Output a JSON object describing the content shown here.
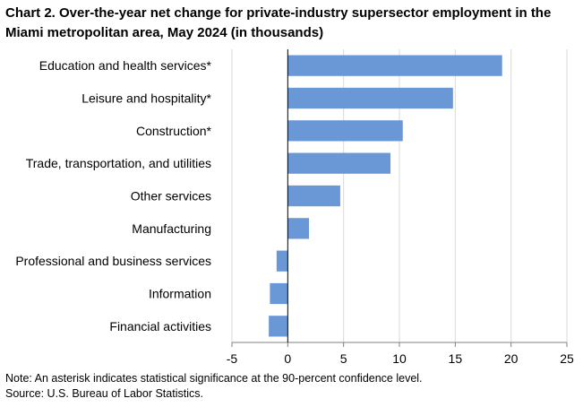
{
  "chart_data": {
    "type": "bar",
    "orientation": "horizontal",
    "title": "Chart 2. Over-the-year net change for private-industry supersector employment in the Miami metropolitan area, May 2024 (in thousands)",
    "categories": [
      "Education and health services*",
      "Leisure and hospitality*",
      "Construction*",
      "Trade, transportation, and utilities",
      "Other services",
      "Manufacturing",
      "Professional and business services",
      "Information",
      "Financial activities"
    ],
    "values": [
      19.2,
      14.8,
      10.3,
      9.2,
      4.7,
      1.9,
      -1.0,
      -1.6,
      -1.7
    ],
    "xlim": [
      -5,
      25
    ],
    "xticks": [
      -5,
      0,
      5,
      10,
      15,
      20,
      25
    ],
    "xlabel": "",
    "ylabel": "",
    "bar_color": "#6a98d6",
    "grid_color": "#d9d9d9",
    "grid": true,
    "legend": "none"
  },
  "notes": {
    "note": "Note: An asterisk indicates statistical significance at the 90-percent confidence level.",
    "source": "Source: U.S. Bureau of Labor Statistics."
  }
}
